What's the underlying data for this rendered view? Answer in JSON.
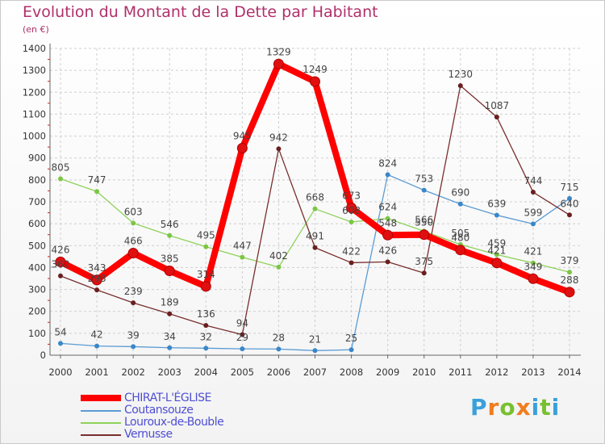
{
  "title": "Evolution du Montant de la Dette par Habitant",
  "subtitle": "(en €)",
  "logo": {
    "text": [
      "P",
      "r",
      "o",
      "x",
      "i",
      "t",
      "i"
    ],
    "colors": [
      "#3aa0dc",
      "#f07d1e",
      "#78c02f",
      "#f07d1e",
      "#3aa0dc",
      "#78c02f",
      "#3aa0dc"
    ]
  },
  "chart_data": {
    "type": "line",
    "x": [
      "2000",
      "2001",
      "2002",
      "2003",
      "2004",
      "2005",
      "2006",
      "2007",
      "2008",
      "2009",
      "2010",
      "2011",
      "2012",
      "2013",
      "2014"
    ],
    "ylim": [
      0,
      1400
    ],
    "yticks": [
      "0",
      "100",
      "200",
      "300",
      "400",
      "500",
      "600",
      "700",
      "800",
      "900",
      "1000",
      "1100",
      "1200",
      "1300",
      "1400"
    ],
    "grid": true,
    "legend_position": "bottom-left",
    "series": [
      {
        "name": "CHIRAT-L'ÉGLISE",
        "color": "#ff0000",
        "marker": "#e01010",
        "width": 8,
        "values": [
          426,
          343,
          466,
          385,
          314,
          945,
          1329,
          1249,
          673,
          548,
          550,
          480,
          421,
          349,
          288
        ]
      },
      {
        "name": "Coutansouze",
        "color": "#5a9bd4",
        "marker": "#3a87c8",
        "width": 1.3,
        "values": [
          54,
          42,
          39,
          34,
          32,
          29,
          28,
          21,
          25,
          824,
          753,
          690,
          639,
          599,
          715
        ]
      },
      {
        "name": "Louroux-de-Bouble",
        "color": "#8ed25a",
        "marker": "#7cc645",
        "width": 1.3,
        "values": [
          805,
          747,
          603,
          546,
          495,
          447,
          402,
          668,
          608,
          624,
          566,
          505,
          459,
          421,
          379
        ]
      },
      {
        "name": "Vernusse",
        "color": "#7a2e2e",
        "marker": "#6a1f1f",
        "width": 1.3,
        "values": [
          362,
          298,
          239,
          189,
          136,
          94,
          942,
          491,
          422,
          426,
          375,
          1230,
          1087,
          744,
          640
        ]
      }
    ],
    "data_labels": [
      [
        "426",
        "343",
        "466",
        "385",
        "314",
        "945",
        "1329",
        "1249",
        "673",
        "548",
        "550",
        "480",
        "421",
        "349",
        "288"
      ],
      [
        "54",
        "42",
        "39",
        "34",
        "32",
        "29",
        "28",
        "21",
        "25",
        "824",
        "753",
        "690",
        "639",
        "599",
        "715"
      ],
      [
        "805",
        "747",
        "603",
        "546",
        "495",
        "447",
        "402",
        "668",
        "608",
        "624",
        "566",
        "505",
        "459",
        "421",
        "379"
      ],
      [
        "362",
        "298",
        "239",
        "189",
        "136",
        "94",
        "942",
        "491",
        "422",
        "426",
        "375",
        "1230",
        "1087",
        "744",
        "640"
      ]
    ]
  }
}
